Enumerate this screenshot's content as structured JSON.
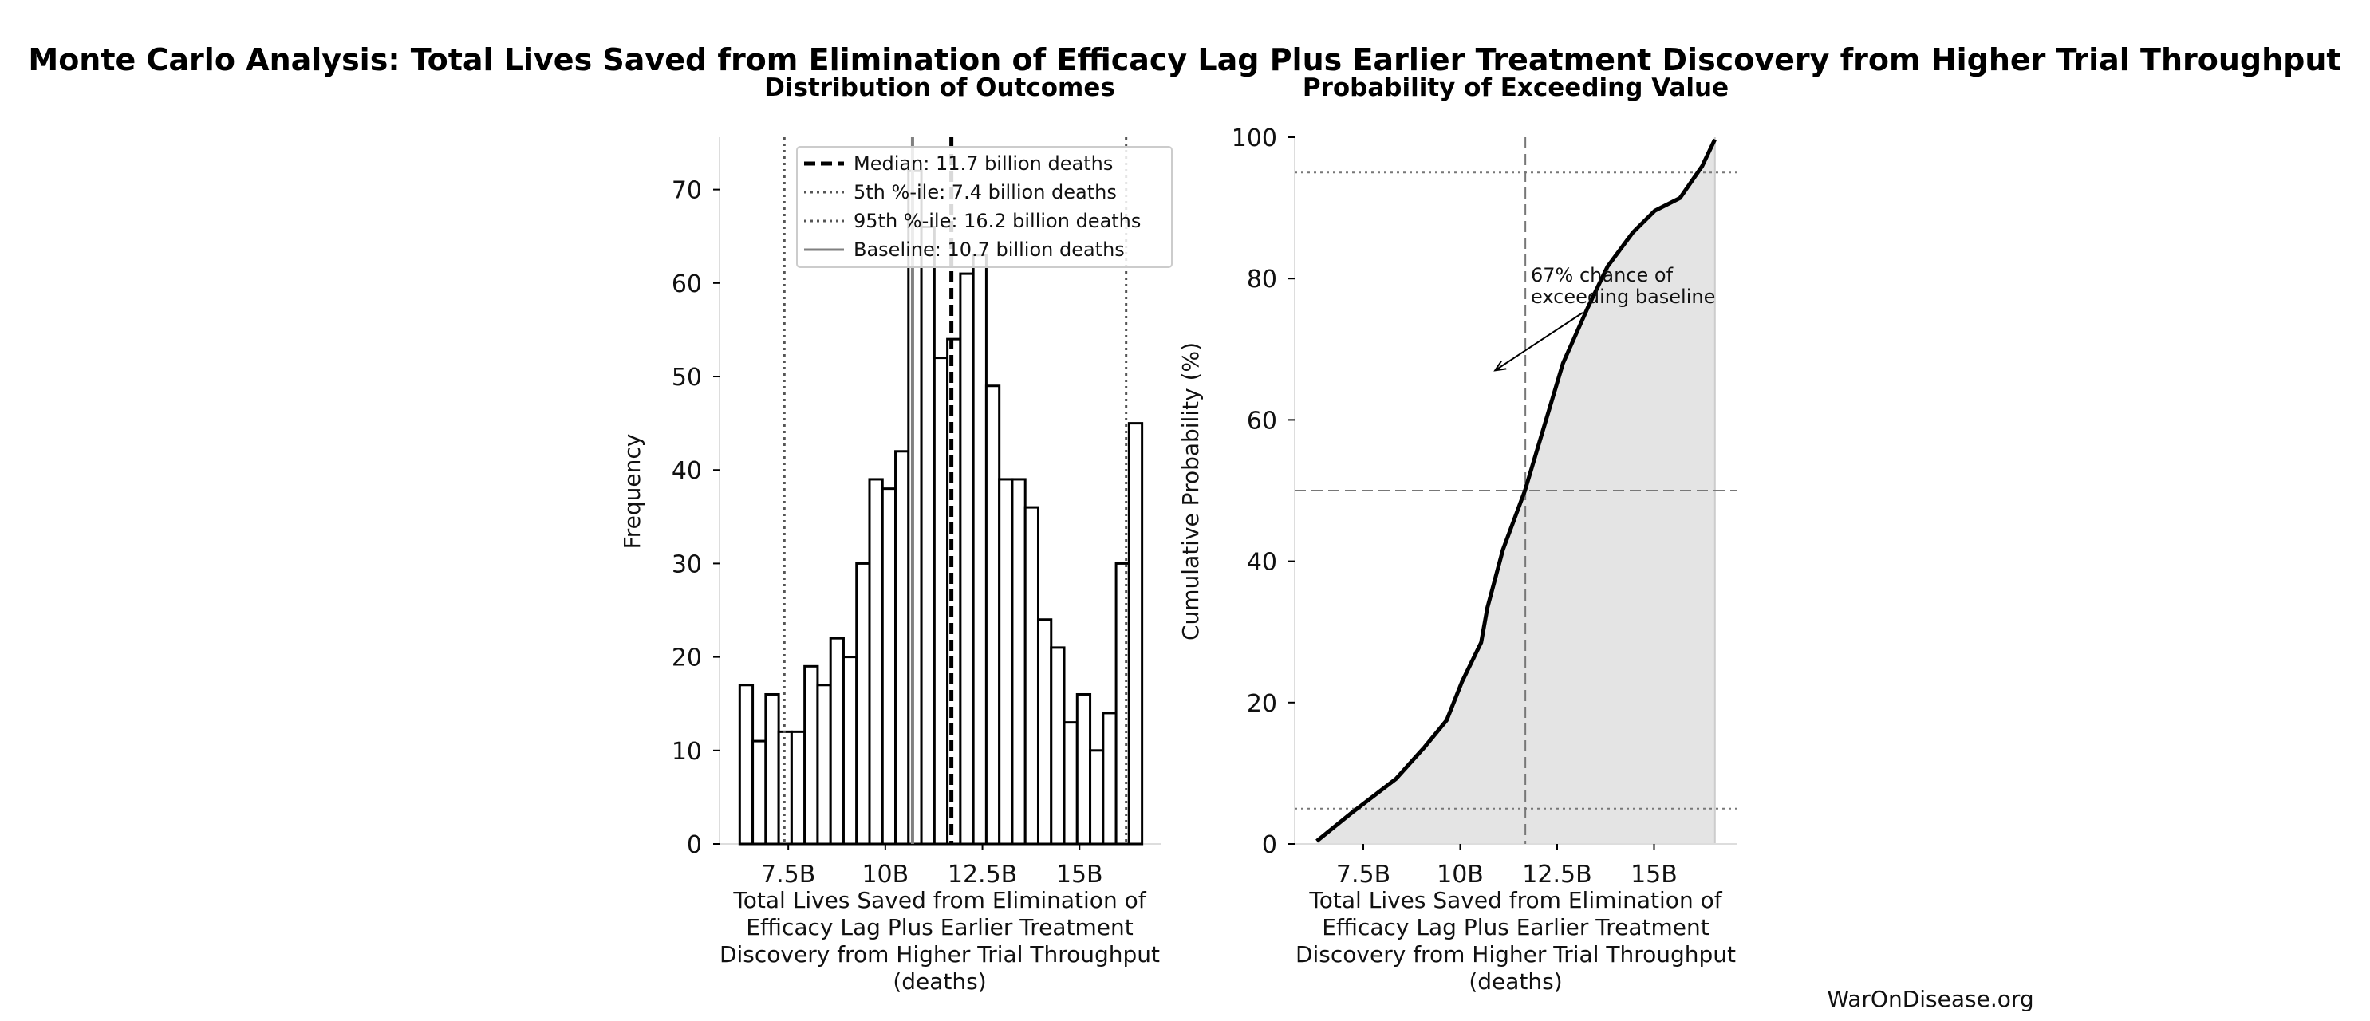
{
  "title": "Monte Carlo Analysis: Total Lives Saved from Elimination of Efficacy Lag Plus Earlier Treatment Discovery from Higher Trial Throughput",
  "watermark": "WarOnDisease.org",
  "colors": {
    "bar_fill": "#ffffff",
    "bar_edge": "#000000",
    "baseline": "#808080",
    "cdf_fill": "#e4e4e4",
    "reference": "#666666"
  },
  "chart_data": [
    {
      "type": "bar",
      "title": "Distribution of Outcomes",
      "xlabel": "Total Lives Saved from Elimination of Efficacy Lag Plus Earlier Treatment Discovery from Higher Trial Throughput (deaths)",
      "ylabel": "Frequency",
      "xlim": [
        5.73,
        17.09
      ],
      "ylim": [
        0,
        75.6
      ],
      "x_unit": "billion deaths",
      "xticks": [
        {
          "value": 7.5,
          "label": "7.5B"
        },
        {
          "value": 10,
          "label": "10B"
        },
        {
          "value": 12.5,
          "label": "12.5B"
        },
        {
          "value": 15,
          "label": "15B"
        }
      ],
      "yticks": [
        0,
        10,
        20,
        30,
        40,
        50,
        60,
        70
      ],
      "bin_start": 6.25,
      "bin_end": 16.61,
      "values": [
        17,
        11,
        16,
        12,
        12,
        19,
        17,
        22,
        20,
        30,
        39,
        38,
        42,
        72,
        66,
        52,
        54,
        61,
        63,
        49,
        39,
        39,
        36,
        24,
        21,
        13,
        16,
        10,
        14,
        30,
        45
      ],
      "reference_lines": [
        {
          "name": "Median: 11.7 billion deaths",
          "value": 11.7,
          "style": "dashed",
          "color": "#000000"
        },
        {
          "name": "5th %-ile: 7.4 billion deaths",
          "value": 7.4,
          "style": "dotted",
          "color": "#555555"
        },
        {
          "name": "95th %-ile: 16.2 billion deaths",
          "value": 16.2,
          "style": "dotted",
          "color": "#555555"
        },
        {
          "name": "Baseline: 10.7 billion deaths",
          "value": 10.7,
          "style": "solid",
          "color": "#808080"
        }
      ],
      "legend": "top-right",
      "grid": false
    },
    {
      "type": "area",
      "title": "Probability of Exceeding Value",
      "xlabel": "Total Lives Saved from Elimination of Efficacy Lag Plus Earlier Treatment Discovery from Higher Trial Throughput (deaths)",
      "ylabel": "Cumulative Probability (%)",
      "xlim": [
        5.73,
        17.13
      ],
      "ylim": [
        0,
        100
      ],
      "xticks": [
        {
          "value": 7.5,
          "label": "7.5B"
        },
        {
          "value": 10,
          "label": "10B"
        },
        {
          "value": 12.5,
          "label": "12.5B"
        },
        {
          "value": 15,
          "label": "15B"
        }
      ],
      "yticks": [
        0,
        20,
        40,
        60,
        80,
        100
      ],
      "x": [
        6.3,
        7.2,
        8.34,
        9.08,
        9.65,
        10.05,
        10.54,
        10.7,
        11.1,
        11.67,
        12.16,
        12.65,
        13.3,
        13.8,
        14.45,
        15.02,
        15.67,
        16.24,
        16.57
      ],
      "y": [
        0.4,
        4.4,
        9.2,
        13.7,
        17.5,
        23,
        28.5,
        33.4,
        41.6,
        50,
        59,
        68,
        76,
        81.7,
        86.5,
        89.6,
        91.4,
        95.9,
        99.7
      ],
      "hlines": [
        {
          "value": 5,
          "style": "dotted"
        },
        {
          "value": 50,
          "style": "dashed"
        },
        {
          "value": 95,
          "style": "dotted"
        }
      ],
      "vline": {
        "value": 11.68,
        "style": "dashed"
      },
      "annotation": {
        "line1": "67% chance of",
        "line2": "exceeding baseline",
        "arrow_to": [
          10.9,
          67
        ]
      },
      "grid": false
    }
  ]
}
